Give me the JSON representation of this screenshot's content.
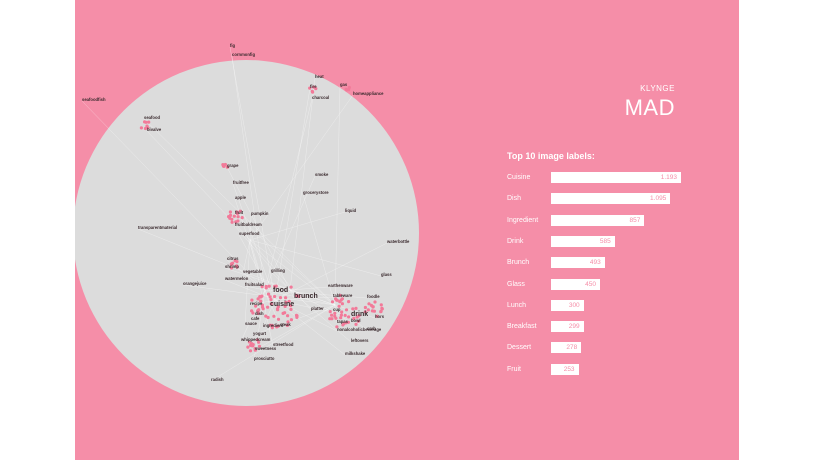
{
  "header": {
    "brand_small": "KLYNGE",
    "brand_large": "MAD"
  },
  "colors": {
    "background": "#f58ea8",
    "circle": "#dcdcdc",
    "node": "#f27a99",
    "edge": "#ffffff",
    "bar": "#ffffff"
  },
  "network": {
    "labels": [
      {
        "text": "fig"
      },
      {
        "text": "cornmonfig"
      },
      {
        "text": "food"
      },
      {
        "text": "cuisine"
      },
      {
        "text": "brunch"
      },
      {
        "text": "drink"
      },
      {
        "text": "seafoodfish"
      },
      {
        "text": "seafood"
      },
      {
        "text": "bivalve"
      },
      {
        "text": "heat"
      },
      {
        "text": "fire"
      },
      {
        "text": "charcoal"
      },
      {
        "text": "gas"
      },
      {
        "text": "homeappliance"
      },
      {
        "text": "grape"
      },
      {
        "text": "fruitfree"
      },
      {
        "text": "apple"
      },
      {
        "text": "fruit"
      },
      {
        "text": "pumpkin"
      },
      {
        "text": "fruitbaldream"
      },
      {
        "text": "superfood"
      },
      {
        "text": "smoke"
      },
      {
        "text": "grocerystore"
      },
      {
        "text": "liquid"
      },
      {
        "text": "transparentmaterial"
      },
      {
        "text": "waterbottle"
      },
      {
        "text": "citrus"
      },
      {
        "text": "shrimp"
      },
      {
        "text": "vegetable"
      },
      {
        "text": "grilling"
      },
      {
        "text": "watermelon"
      },
      {
        "text": "fruitsalad"
      },
      {
        "text": "orangejuice"
      },
      {
        "text": "glass"
      },
      {
        "text": "earthenware"
      },
      {
        "text": "tableware"
      },
      {
        "text": "foodle"
      },
      {
        "text": "cup"
      },
      {
        "text": "platter"
      },
      {
        "text": "bowl"
      },
      {
        "text": "recipe"
      },
      {
        "text": "dish"
      },
      {
        "text": "tapas"
      },
      {
        "text": "sauce"
      },
      {
        "text": "hors"
      },
      {
        "text": "ingredient"
      },
      {
        "text": "steak"
      },
      {
        "text": "yogurt"
      },
      {
        "text": "crab"
      },
      {
        "text": "cafe"
      },
      {
        "text": "nonalcoholicbeverage"
      },
      {
        "text": "whippedcream"
      },
      {
        "text": "sweetness"
      },
      {
        "text": "streetfood"
      },
      {
        "text": "leftovers"
      },
      {
        "text": "milkshake"
      },
      {
        "text": "prosciutto"
      },
      {
        "text": "radish"
      }
    ]
  },
  "chart_data": {
    "type": "bar",
    "title": "Top 10 image labels:",
    "categories": [
      "Cuisine",
      "Dish",
      "Ingredient",
      "Drink",
      "Brunch",
      "Glass",
      "Lunch",
      "Breakfast",
      "Dessert",
      "Fruit"
    ],
    "values": [
      1193,
      1095,
      857,
      585,
      493,
      450,
      300,
      299,
      278,
      253
    ],
    "value_labels": [
      "1.193",
      "1.095",
      "857",
      "585",
      "493",
      "450",
      "300",
      "299",
      "278",
      "253"
    ],
    "xlim": [
      0,
      1193
    ],
    "orientation": "horizontal"
  }
}
